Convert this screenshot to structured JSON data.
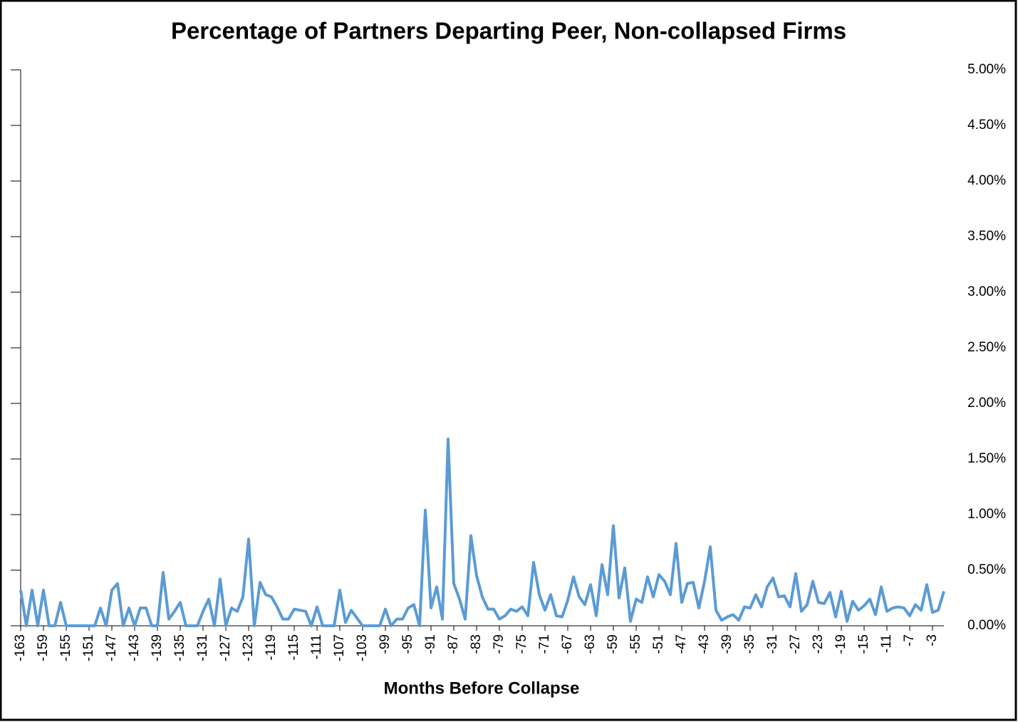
{
  "chart_data": {
    "type": "line",
    "title": "Percentage of Partners Departing Peer, Non-collapsed Firms",
    "x_label": "Months Before Collapse",
    "x": [
      -163,
      -162,
      -161,
      -160,
      -159,
      -158,
      -157,
      -156,
      -155,
      -154,
      -153,
      -152,
      -151,
      -150,
      -149,
      -148,
      -147,
      -146,
      -145,
      -144,
      -143,
      -142,
      -141,
      -140,
      -139,
      -138,
      -137,
      -136,
      -135,
      -134,
      -133,
      -132,
      -131,
      -130,
      -129,
      -128,
      -127,
      -126,
      -125,
      -124,
      -123,
      -122,
      -121,
      -120,
      -119,
      -118,
      -117,
      -116,
      -115,
      -114,
      -113,
      -112,
      -111,
      -110,
      -109,
      -108,
      -107,
      -106,
      -105,
      -104,
      -103,
      -102,
      -101,
      -100,
      -99,
      -98,
      -97,
      -96,
      -95,
      -94,
      -93,
      -92,
      -91,
      -90,
      -89,
      -88,
      -87,
      -86,
      -85,
      -84,
      -83,
      -82,
      -81,
      -80,
      -79,
      -78,
      -77,
      -76,
      -75,
      -74,
      -73,
      -72,
      -71,
      -70,
      -69,
      -68,
      -67,
      -66,
      -65,
      -64,
      -63,
      -62,
      -61,
      -60,
      -59,
      -58,
      -57,
      -56,
      -55,
      -54,
      -53,
      -52,
      -51,
      -50,
      -49,
      -48,
      -47,
      -46,
      -45,
      -44,
      -43,
      -42,
      -41,
      -40,
      -39,
      -38,
      -37,
      -36,
      -35,
      -34,
      -33,
      -32,
      -31,
      -30,
      -29,
      -28,
      -27,
      -26,
      -25,
      -24,
      -23,
      -22,
      -21,
      -20,
      -19,
      -18,
      -17,
      -16,
      -15,
      -14,
      -13,
      -12,
      -11,
      -10,
      -9,
      -8,
      -7,
      -6,
      -5,
      -4,
      -3,
      -2,
      -1
    ],
    "series": [
      {
        "name": "Percentage of Partners Departing",
        "color": "#5b9bd5",
        "values": [
          0.32,
          0,
          0.32,
          0,
          0.32,
          0,
          0,
          0.21,
          0,
          0,
          0,
          0,
          0,
          0,
          0.16,
          0,
          0.32,
          0.38,
          0,
          0.16,
          0,
          0.16,
          0.16,
          0,
          0,
          0.48,
          0.06,
          0.13,
          0.21,
          0,
          0,
          0,
          0.13,
          0.24,
          0,
          0.42,
          0,
          0.16,
          0.13,
          0.26,
          0.78,
          0,
          0.39,
          0.28,
          0.26,
          0.17,
          0.06,
          0.06,
          0.15,
          0.14,
          0.13,
          0,
          0.17,
          0,
          0,
          0,
          0.32,
          0.03,
          0.14,
          0.07,
          0,
          0,
          0,
          0,
          0.15,
          0,
          0.06,
          0.06,
          0.16,
          0.19,
          0,
          1.04,
          0.16,
          0.35,
          0.06,
          1.68,
          0.38,
          0.24,
          0.06,
          0.81,
          0.45,
          0.26,
          0.15,
          0.15,
          0.06,
          0.09,
          0.15,
          0.13,
          0.17,
          0.09,
          0.57,
          0.28,
          0.14,
          0.28,
          0.09,
          0.08,
          0.23,
          0.44,
          0.26,
          0.19,
          0.37,
          0.09,
          0.55,
          0.28,
          0.9,
          0.25,
          0.52,
          0.04,
          0.24,
          0.21,
          0.44,
          0.26,
          0.46,
          0.4,
          0.28,
          0.74,
          0.21,
          0.38,
          0.39,
          0.16,
          0.4,
          0.71,
          0.14,
          0.05,
          0.08,
          0.1,
          0.05,
          0.17,
          0.16,
          0.28,
          0.17,
          0.35,
          0.43,
          0.26,
          0.27,
          0.17,
          0.47,
          0.13,
          0.19,
          0.4,
          0.21,
          0.2,
          0.3,
          0.08,
          0.31,
          0.04,
          0.22,
          0.14,
          0.18,
          0.24,
          0.1,
          0.35,
          0.13,
          0.16,
          0.17,
          0.16,
          0.09,
          0.19,
          0.14,
          0.37,
          0.12,
          0.14,
          0.31
        ]
      }
    ],
    "xlim": [
      -163,
      -1
    ],
    "xticks": [
      -163,
      -159,
      -155,
      -151,
      -147,
      -143,
      -139,
      -135,
      -131,
      -127,
      -123,
      -119,
      -115,
      -111,
      -107,
      -103,
      -99,
      -95,
      -91,
      -87,
      -83,
      -79,
      -75,
      -71,
      -67,
      -63,
      -59,
      -55,
      -51,
      -47,
      -43,
      -39,
      -35,
      -31,
      -27,
      -23,
      -19,
      -15,
      -11,
      -7,
      -3
    ],
    "ylim": [
      0,
      5
    ],
    "yticks": [
      {
        "value": 0,
        "label": "0.00%"
      },
      {
        "value": 0.5,
        "label": "0.50%"
      },
      {
        "value": 1,
        "label": "1.00%"
      },
      {
        "value": 1.5,
        "label": "1.50%"
      },
      {
        "value": 2,
        "label": "2.00%"
      },
      {
        "value": 2.5,
        "label": "2.50%"
      },
      {
        "value": 3,
        "label": "3.00%"
      },
      {
        "value": 3.5,
        "label": "3.50%"
      },
      {
        "value": 4,
        "label": "4.00%"
      },
      {
        "value": 4.5,
        "label": "4.50%"
      },
      {
        "value": 5,
        "label": "5.00%"
      }
    ],
    "grid": false
  }
}
